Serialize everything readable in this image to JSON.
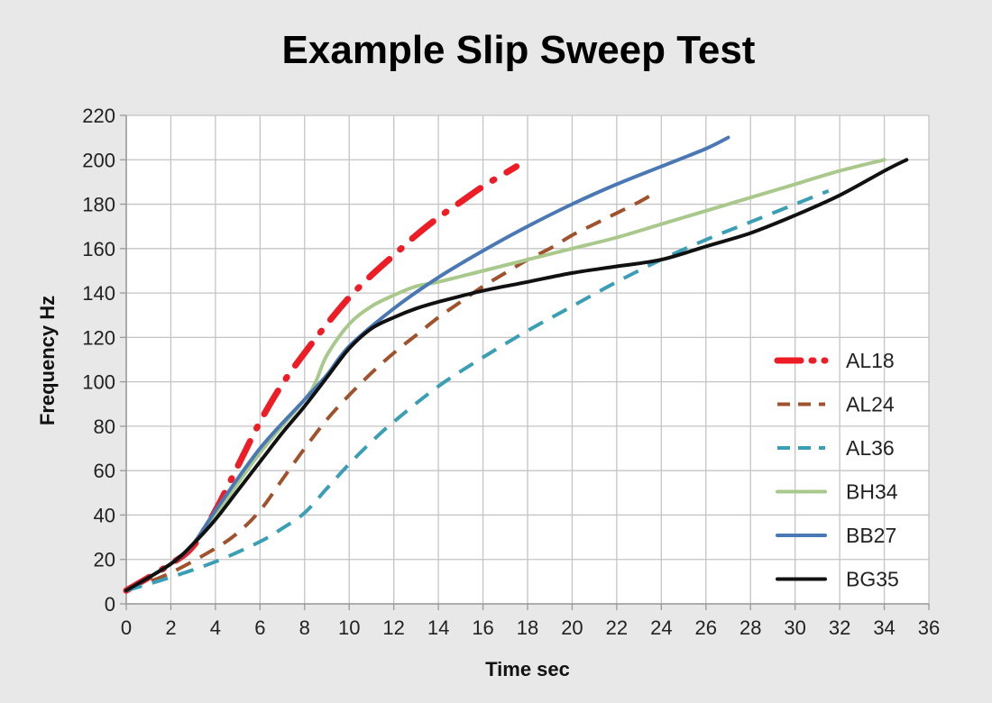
{
  "chart_data": {
    "type": "line",
    "title": "Example Slip Sweep Test",
    "xlabel": "Time sec",
    "ylabel": "Frequency Hz",
    "xlim": [
      0,
      36
    ],
    "ylim": [
      0,
      220
    ],
    "xticks": [
      0,
      2,
      4,
      6,
      8,
      10,
      12,
      14,
      16,
      18,
      20,
      22,
      24,
      26,
      28,
      30,
      32,
      34,
      36
    ],
    "yticks": [
      0,
      20,
      40,
      60,
      80,
      100,
      120,
      140,
      160,
      180,
      200,
      220
    ],
    "grid": true,
    "legend_position": "lower-right",
    "series": [
      {
        "name": "AL18",
        "color": "#ee1c25",
        "style": "dash-dot",
        "x": [
          0,
          2,
          3,
          4,
          5,
          6,
          7,
          8,
          9,
          10,
          11,
          12,
          13,
          14,
          15,
          16,
          17,
          17.5
        ],
        "y": [
          6,
          18,
          26,
          42,
          62,
          82,
          99,
          113,
          126,
          138,
          148,
          157,
          166,
          174,
          181,
          188,
          194,
          197
        ]
      },
      {
        "name": "AL24",
        "color": "#a0522d",
        "style": "dash",
        "x": [
          0,
          2,
          4,
          5,
          6,
          7,
          8,
          9,
          10,
          11,
          12,
          13,
          14,
          15,
          16,
          17,
          18,
          19,
          20,
          21,
          22,
          23,
          23.7
        ],
        "y": [
          6,
          14,
          25,
          32,
          42,
          56,
          70,
          83,
          94,
          104,
          113,
          121,
          129,
          136,
          143,
          149,
          155,
          160,
          166,
          171,
          176,
          181,
          185
        ]
      },
      {
        "name": "AL36",
        "color": "#3a9fb5",
        "style": "dash",
        "x": [
          0,
          2,
          4,
          6,
          7,
          8,
          9,
          10,
          11,
          12,
          14,
          16,
          18,
          20,
          22,
          24,
          26,
          28,
          30,
          31.5
        ],
        "y": [
          6,
          12,
          19,
          28,
          34,
          41,
          52,
          63,
          73,
          82,
          98,
          111,
          123,
          134,
          145,
          155,
          164,
          172,
          180,
          186
        ]
      },
      {
        "name": "BH34",
        "color": "#a9c98c",
        "style": "solid",
        "x": [
          0,
          2,
          3,
          4,
          6,
          8,
          8.5,
          9,
          10,
          11,
          12,
          13,
          14,
          16,
          18,
          20,
          22,
          24,
          26,
          28,
          30,
          32,
          34
        ],
        "y": [
          6,
          18,
          27,
          40,
          68,
          92,
          100,
          112,
          126,
          134,
          139,
          143,
          145,
          150,
          155,
          160,
          165,
          171,
          177,
          183,
          189,
          195,
          200
        ]
      },
      {
        "name": "BB27",
        "color": "#4a78b5",
        "style": "solid",
        "x": [
          0,
          2,
          3,
          4,
          6,
          8,
          9,
          10,
          12,
          14,
          16,
          18,
          20,
          22,
          24,
          26,
          27
        ],
        "y": [
          6,
          18,
          27,
          42,
          70,
          92,
          103,
          116,
          133,
          147,
          159,
          170,
          180,
          189,
          197,
          205,
          210
        ]
      },
      {
        "name": "BG35",
        "color": "#111111",
        "style": "solid",
        "x": [
          0,
          2,
          3,
          4,
          5,
          6,
          7,
          8,
          9,
          10,
          11,
          12,
          13,
          14,
          16,
          18,
          20,
          22,
          24,
          26,
          28,
          30,
          32,
          34,
          35
        ],
        "y": [
          6,
          18,
          27,
          38,
          51,
          64,
          77,
          89,
          102,
          115,
          124,
          129,
          133,
          136,
          141,
          145,
          149,
          152,
          155,
          161,
          167,
          175,
          184,
          195,
          200
        ]
      }
    ]
  }
}
